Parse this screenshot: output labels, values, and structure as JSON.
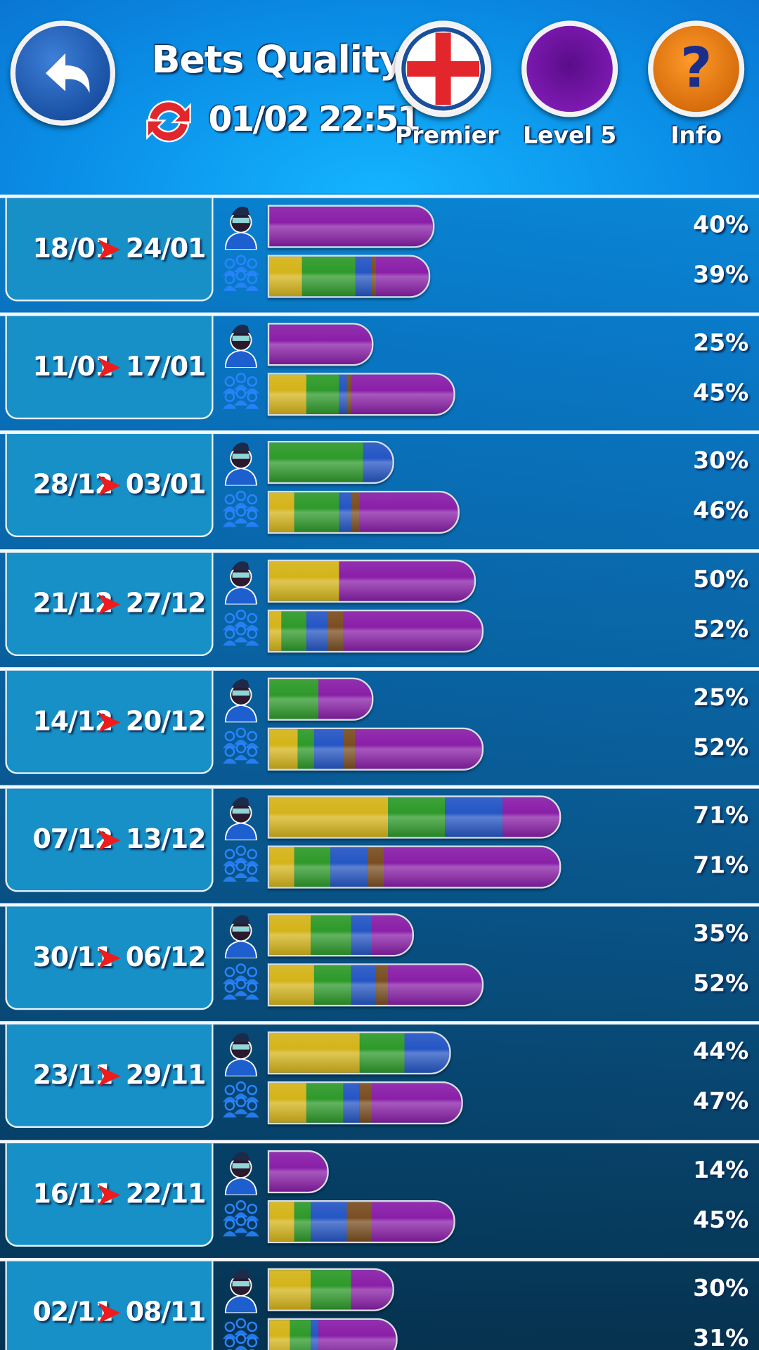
{
  "header": {
    "title": "Bets Quality",
    "updated": "01/02 22:51",
    "buttons": [
      {
        "label": "Premier"
      },
      {
        "label": "Level 5"
      },
      {
        "label": "Info"
      }
    ]
  },
  "rows": [
    {
      "from": "18/01",
      "to": "24/01",
      "user": {
        "label": "40%",
        "segments": [
          {
            "color": "#8a1fa8",
            "value": 40
          }
        ]
      },
      "community": {
        "label": "39%",
        "segments": [
          {
            "color": "#d4b41a",
            "value": 8
          },
          {
            "color": "#2e9a2a",
            "value": 13
          },
          {
            "color": "#2556c4",
            "value": 4
          },
          {
            "color": "#7a4e22",
            "value": 1
          },
          {
            "color": "#8a1fa8",
            "value": 13
          }
        ]
      }
    },
    {
      "from": "11/01",
      "to": "17/01",
      "user": {
        "label": "25%",
        "segments": [
          {
            "color": "#8a1fa8",
            "value": 25
          }
        ]
      },
      "community": {
        "label": "45%",
        "segments": [
          {
            "color": "#d4b41a",
            "value": 9
          },
          {
            "color": "#2e9a2a",
            "value": 8
          },
          {
            "color": "#2556c4",
            "value": 2
          },
          {
            "color": "#7a4e22",
            "value": 1
          },
          {
            "color": "#8a1fa8",
            "value": 25
          }
        ]
      }
    },
    {
      "from": "28/12",
      "to": "03/01",
      "user": {
        "label": "30%",
        "segments": [
          {
            "color": "#2e9a2a",
            "value": 23
          },
          {
            "color": "#2556c4",
            "value": 7
          }
        ]
      },
      "community": {
        "label": "46%",
        "segments": [
          {
            "color": "#d4b41a",
            "value": 6
          },
          {
            "color": "#2e9a2a",
            "value": 11
          },
          {
            "color": "#2556c4",
            "value": 3
          },
          {
            "color": "#7a4e22",
            "value": 2
          },
          {
            "color": "#8a1fa8",
            "value": 24
          }
        ]
      }
    },
    {
      "from": "21/12",
      "to": "27/12",
      "user": {
        "label": "50%",
        "segments": [
          {
            "color": "#d4b41a",
            "value": 17
          },
          {
            "color": "#8a1fa8",
            "value": 33
          }
        ]
      },
      "community": {
        "label": "52%",
        "segments": [
          {
            "color": "#d4b41a",
            "value": 3
          },
          {
            "color": "#2e9a2a",
            "value": 6
          },
          {
            "color": "#2556c4",
            "value": 5
          },
          {
            "color": "#7a4e22",
            "value": 4
          },
          {
            "color": "#8a1fa8",
            "value": 34
          }
        ]
      }
    },
    {
      "from": "14/12",
      "to": "20/12",
      "user": {
        "label": "25%",
        "segments": [
          {
            "color": "#2e9a2a",
            "value": 12
          },
          {
            "color": "#8a1fa8",
            "value": 13
          }
        ]
      },
      "community": {
        "label": "52%",
        "segments": [
          {
            "color": "#d4b41a",
            "value": 7
          },
          {
            "color": "#2e9a2a",
            "value": 4
          },
          {
            "color": "#2556c4",
            "value": 7
          },
          {
            "color": "#7a4e22",
            "value": 3
          },
          {
            "color": "#8a1fa8",
            "value": 31
          }
        ]
      }
    },
    {
      "from": "07/12",
      "to": "13/12",
      "user": {
        "label": "71%",
        "segments": [
          {
            "color": "#d4b41a",
            "value": 29
          },
          {
            "color": "#2e9a2a",
            "value": 14
          },
          {
            "color": "#2556c4",
            "value": 14
          },
          {
            "color": "#8a1fa8",
            "value": 14
          }
        ]
      },
      "community": {
        "label": "71%",
        "segments": [
          {
            "color": "#d4b41a",
            "value": 6
          },
          {
            "color": "#2e9a2a",
            "value": 9
          },
          {
            "color": "#2556c4",
            "value": 9
          },
          {
            "color": "#7a4e22",
            "value": 4
          },
          {
            "color": "#8a1fa8",
            "value": 43
          }
        ]
      }
    },
    {
      "from": "30/11",
      "to": "06/12",
      "user": {
        "label": "35%",
        "segments": [
          {
            "color": "#d4b41a",
            "value": 10
          },
          {
            "color": "#2e9a2a",
            "value": 10
          },
          {
            "color": "#2556c4",
            "value": 5
          },
          {
            "color": "#8a1fa8",
            "value": 10
          }
        ]
      },
      "community": {
        "label": "52%",
        "segments": [
          {
            "color": "#d4b41a",
            "value": 11
          },
          {
            "color": "#2e9a2a",
            "value": 9
          },
          {
            "color": "#2556c4",
            "value": 6
          },
          {
            "color": "#7a4e22",
            "value": 3
          },
          {
            "color": "#8a1fa8",
            "value": 23
          }
        ]
      }
    },
    {
      "from": "23/11",
      "to": "29/11",
      "user": {
        "label": "44%",
        "segments": [
          {
            "color": "#d4b41a",
            "value": 22
          },
          {
            "color": "#2e9a2a",
            "value": 11
          },
          {
            "color": "#2556c4",
            "value": 11
          }
        ]
      },
      "community": {
        "label": "47%",
        "segments": [
          {
            "color": "#d4b41a",
            "value": 9
          },
          {
            "color": "#2e9a2a",
            "value": 9
          },
          {
            "color": "#2556c4",
            "value": 4
          },
          {
            "color": "#7a4e22",
            "value": 3
          },
          {
            "color": "#8a1fa8",
            "value": 22
          }
        ]
      }
    },
    {
      "from": "16/11",
      "to": "22/11",
      "user": {
        "label": "14%",
        "segments": [
          {
            "color": "#8a1fa8",
            "value": 14
          }
        ]
      },
      "community": {
        "label": "45%",
        "segments": [
          {
            "color": "#d4b41a",
            "value": 6
          },
          {
            "color": "#2e9a2a",
            "value": 4
          },
          {
            "color": "#2556c4",
            "value": 9
          },
          {
            "color": "#7a4e22",
            "value": 6
          },
          {
            "color": "#8a1fa8",
            "value": 20
          }
        ]
      }
    },
    {
      "from": "02/11",
      "to": "08/11",
      "user": {
        "label": "30%",
        "segments": [
          {
            "color": "#d4b41a",
            "value": 10
          },
          {
            "color": "#2e9a2a",
            "value": 10
          },
          {
            "color": "#8a1fa8",
            "value": 10
          }
        ]
      },
      "community": {
        "label": "31%",
        "segments": [
          {
            "color": "#d4b41a",
            "value": 5
          },
          {
            "color": "#2e9a2a",
            "value": 5
          },
          {
            "color": "#2556c4",
            "value": 2
          },
          {
            "color": "#8a1fa8",
            "value": 19
          }
        ]
      }
    }
  ]
}
